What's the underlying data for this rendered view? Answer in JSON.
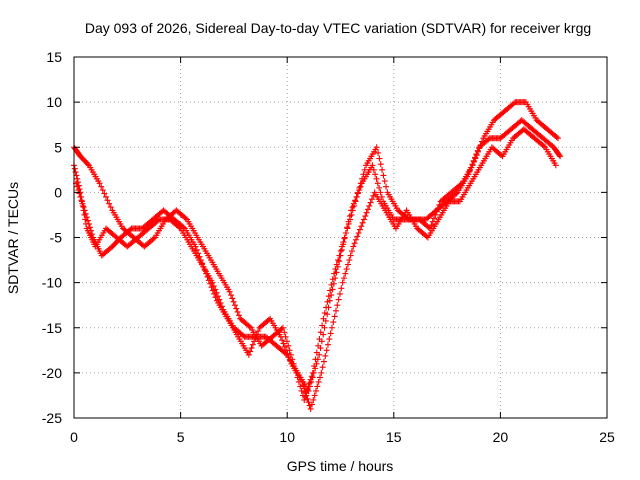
{
  "chart_data": {
    "type": "scatter",
    "title": "Day 093 of 2026, Sidereal Day-to-day VTEC variation (SDTVAR) for receiver krgg",
    "xlabel": "GPS time / hours",
    "ylabel": "SDTVAR / TECUs",
    "xlim": [
      0,
      25
    ],
    "ylim": [
      -25,
      15
    ],
    "xticks": [
      0,
      5,
      10,
      15,
      20,
      25
    ],
    "yticks": [
      -25,
      -20,
      -15,
      -10,
      -5,
      0,
      5,
      10,
      15
    ],
    "grid": true,
    "marker": "+",
    "series": [
      {
        "name": "SDTVAR",
        "color": "#ff0000",
        "x": [
          0.0,
          0.3,
          0.6,
          1.0,
          1.5,
          2.0,
          2.5,
          3.0,
          3.5,
          4.0,
          4.5,
          5.0,
          5.5,
          6.0,
          6.5,
          7.0,
          7.5,
          8.0,
          8.5,
          9.0,
          9.5,
          10.0,
          10.5,
          11.0,
          11.5,
          12.0,
          12.5,
          13.0,
          13.5,
          14.0,
          14.5,
          15.0,
          15.5,
          16.0,
          16.5,
          17.0,
          17.5,
          18.0,
          18.5,
          19.0,
          19.5,
          20.0,
          20.5,
          21.0,
          21.5,
          22.0,
          22.5,
          22.8
        ],
        "y": [
          3,
          0,
          -4,
          -6,
          -4,
          -5,
          -6,
          -5,
          -4,
          -3,
          -3,
          -4,
          -6,
          -8,
          -10,
          -13,
          -15,
          -16,
          -16,
          -16,
          -17,
          -18,
          -20,
          -22,
          -18,
          -12,
          -7,
          -2,
          1,
          3,
          -1,
          -3,
          -3,
          -3,
          -3,
          -2,
          -1,
          0,
          2,
          5,
          6,
          6,
          7,
          8,
          7,
          6,
          5,
          4
        ]
      },
      {
        "name": "SDTVAR",
        "color": "#ff0000",
        "x": [
          0.0,
          0.3,
          0.7,
          1.2,
          1.8,
          2.3,
          2.8,
          3.3,
          3.8,
          4.3,
          4.8,
          5.3,
          5.8,
          6.3,
          6.8,
          7.3,
          7.8,
          8.3,
          8.8,
          9.3,
          9.8,
          10.3,
          10.8,
          11.2,
          11.7,
          12.2,
          12.7,
          13.2,
          13.7,
          14.2,
          14.7,
          15.2,
          15.7,
          16.2,
          16.7,
          17.2,
          17.7,
          18.2,
          18.7,
          19.2,
          19.7,
          20.2,
          20.7,
          21.2,
          21.7,
          22.2,
          22.7
        ],
        "y": [
          5,
          4,
          3,
          1,
          -2,
          -4,
          -5,
          -6,
          -5,
          -3,
          -2,
          -3,
          -5,
          -7,
          -9,
          -11,
          -14,
          -15,
          -17,
          -16,
          -15,
          -19,
          -23,
          -20,
          -14,
          -9,
          -5,
          -1,
          3,
          5,
          0,
          -2,
          -3,
          -3,
          -4,
          -1,
          0,
          1,
          3,
          6,
          8,
          9,
          10,
          10,
          8,
          7,
          6
        ]
      },
      {
        "name": "SDTVAR",
        "color": "#ff0000",
        "x": [
          0.1,
          0.5,
          0.9,
          1.3,
          1.8,
          2.2,
          2.7,
          3.2,
          3.7,
          4.2,
          4.7,
          5.2,
          5.7,
          6.2,
          6.7,
          7.2,
          7.7,
          8.2,
          8.7,
          9.2,
          9.7,
          10.2,
          10.7,
          11.1,
          11.6,
          12.1,
          12.6,
          13.1,
          13.6,
          14.1,
          14.6,
          15.1,
          15.6,
          16.1,
          16.6,
          17.1,
          17.6,
          18.1,
          18.6,
          19.1,
          19.6,
          20.1,
          20.6,
          21.1,
          21.6,
          22.1,
          22.6
        ],
        "y": [
          1,
          -2,
          -5,
          -7,
          -6,
          -5,
          -4,
          -4,
          -3,
          -2,
          -3,
          -4,
          -6,
          -9,
          -12,
          -14,
          -16,
          -18,
          -15,
          -14,
          -16,
          -19,
          -21,
          -24,
          -20,
          -15,
          -10,
          -6,
          -3,
          0,
          -2,
          -4,
          -2,
          -4,
          -5,
          -3,
          -1,
          -1,
          1,
          3,
          5,
          4,
          6,
          7,
          6,
          5,
          3
        ]
      }
    ]
  }
}
